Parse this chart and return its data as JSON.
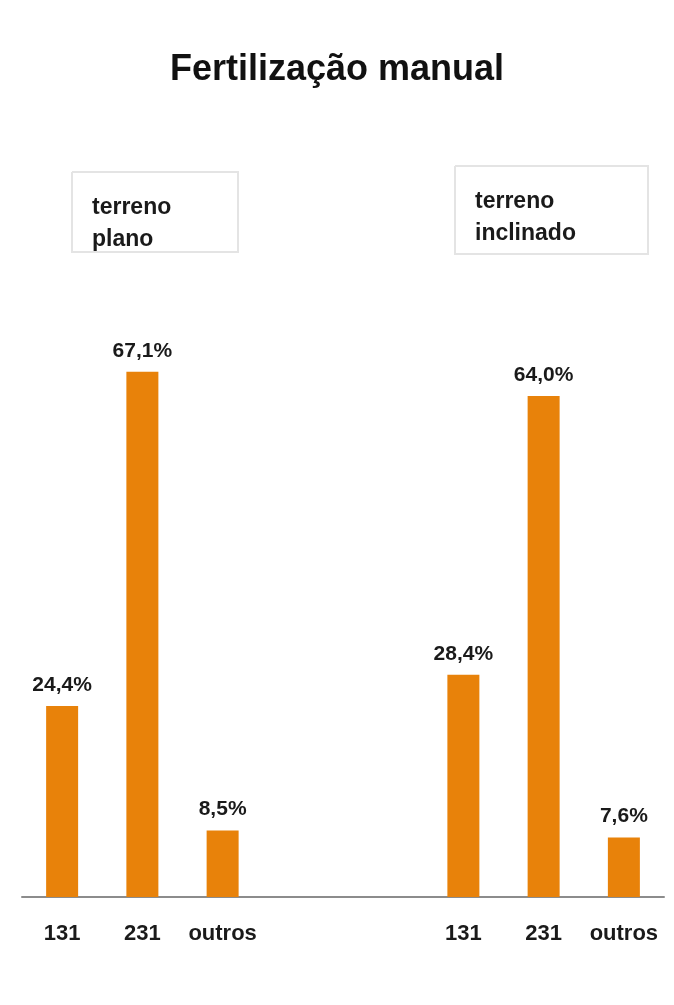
{
  "chart_data": {
    "type": "bar",
    "title": "Fertilização manual",
    "categories": [
      "131",
      "231",
      "outros",
      null,
      null,
      "131",
      "231",
      "outros"
    ],
    "values": [
      24.4,
      67.1,
      8.5,
      null,
      null,
      28.4,
      64.0,
      7.6
    ],
    "value_labels": [
      "24,4%",
      "67,1%",
      "8,5%",
      null,
      null,
      "28,4%",
      "64,0%",
      "7,6%"
    ],
    "color": "#e8820a",
    "tick_labels": "x",
    "grid": false,
    "annotations": [
      "terreno\nplano",
      "terreno\ninclinado"
    ]
  }
}
